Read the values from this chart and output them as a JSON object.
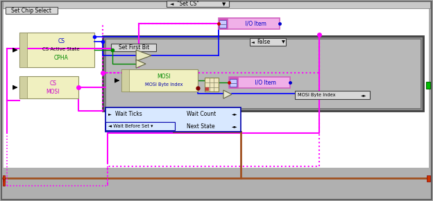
{
  "bg_outer": "#b0b0b0",
  "bg_white": "#ffffff",
  "bg_case": "#888888",
  "bg_case_inner": "#b8b8b8",
  "cream_box": "#f0f0c0",
  "cream_side": "#d8d820",
  "pink_fill": "#f0b0e8",
  "pink_border": "#d060c0",
  "pink_line": "#ff00ff",
  "pink_dashed": "#ff00ff",
  "blue_line": "#0000ff",
  "blue_dark": "#0000cc",
  "green_line": "#008800",
  "brown_line": "#a05020",
  "gray_label": "#d8d8d8",
  "title_bar": "#c8c8c8",
  "title_text": "\"Set CS\"",
  "chip_select_label": "Set Chip Select",
  "io_item_label": " I/O Item",
  "mosi_byte_index_label": "MOSI Byte Index",
  "false_label": "False",
  "set_first_bit_label": "Set First Bit",
  "wait_ticks_label": "Wait Ticks",
  "wait_count_label": "Wait Count",
  "wait_before_set_label": "◄ Wait Before Set ▾",
  "next_state_label": "Next State"
}
